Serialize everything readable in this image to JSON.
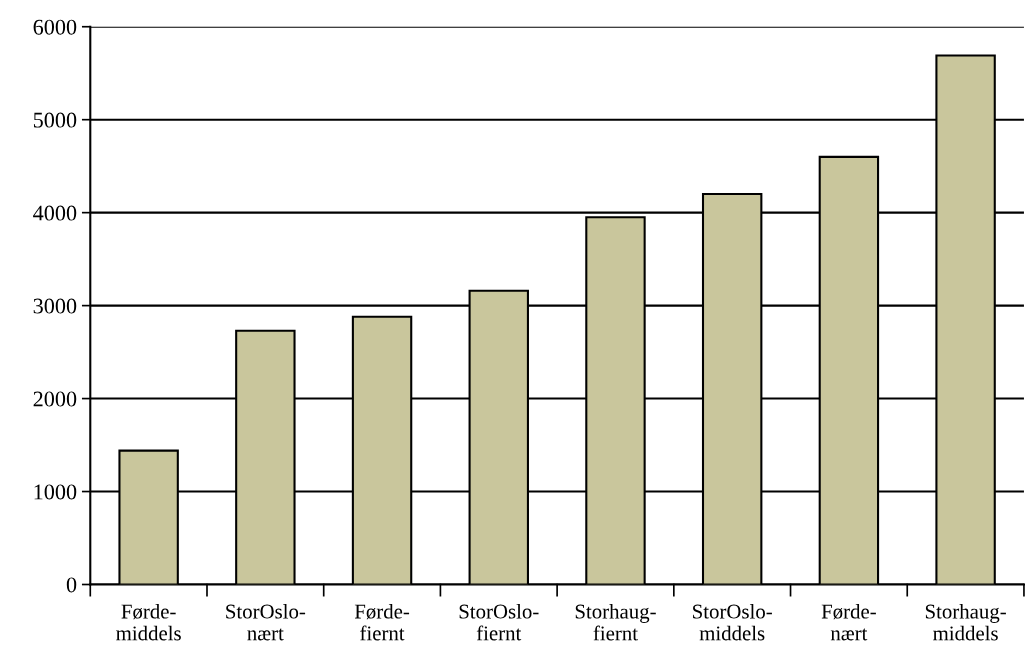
{
  "chart_data": {
    "type": "bar",
    "categories": [
      "Førde-\nmiddels",
      "StorOslo-\nnært",
      "Førde-\nfiernt",
      "StorOslo-\nfiernt",
      "Storhaug-\nfiernt",
      "StorOslo-\nmiddels",
      "Førde-\nnært",
      "Storhaug-\nmiddels"
    ],
    "values": [
      1440,
      2730,
      2880,
      3160,
      3950,
      4200,
      4600,
      5690
    ],
    "color": "#c9c69c",
    "ylim": [
      0,
      6000
    ],
    "yticks": [
      0,
      1000,
      2000,
      3000,
      4000,
      5000,
      6000
    ],
    "grid": "y",
    "legend": false
  }
}
